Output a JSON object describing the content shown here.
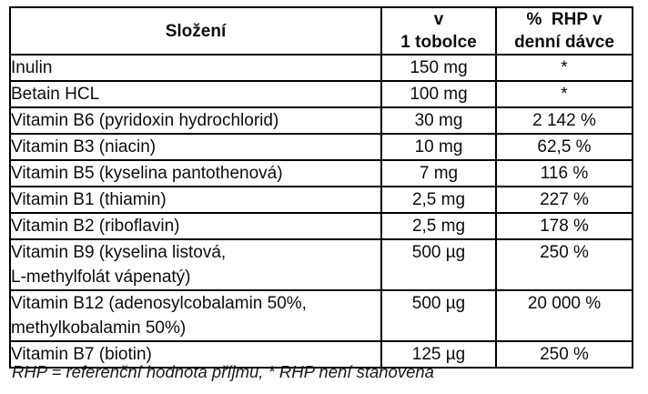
{
  "table": {
    "headers": {
      "composition": "Složení",
      "per_capsule": "v\n1 tobolce",
      "rhp_daily": "%  RHP v\ndenní dávce"
    },
    "rows": [
      {
        "name": "Inulin",
        "amount": "150 mg",
        "rhp": "*"
      },
      {
        "name": "Betain HCL",
        "amount": "100 mg",
        "rhp": "*"
      },
      {
        "name": "Vitamin B6 (pyridoxin hydrochlorid)",
        "amount": "30 mg",
        "rhp": "2 142 %"
      },
      {
        "name": "Vitamin B3 (niacin)",
        "amount": "10 mg",
        "rhp": "62,5 %"
      },
      {
        "name": "Vitamin B5 (kyselina pantothenová)",
        "amount": "7 mg",
        "rhp": "116 %"
      },
      {
        "name": "Vitamin B1 (thiamin)",
        "amount": "2,5 mg",
        "rhp": "227 %"
      },
      {
        "name": "Vitamin B2 (riboflavin)",
        "amount": "2,5 mg",
        "rhp": "178 %"
      },
      {
        "name": "Vitamin B9 (kyselina listová,\nL-methylfolát vápenatý)",
        "amount": "500 µg",
        "rhp": "250 %"
      },
      {
        "name": "Vitamin B12 (adenosylcobalamin 50%,\nmethylkobalamin 50%)",
        "amount": "500 µg",
        "rhp": "20 000 %"
      },
      {
        "name": "Vitamin B7 (biotin)",
        "amount": "125 µg",
        "rhp": "250 %"
      }
    ],
    "footnote": "RHP = referenční hodnota příjmu, * RHP není stanovena"
  },
  "colors": {
    "text": "#0d0d0d",
    "border": "#000000",
    "background": "#ffffff"
  }
}
